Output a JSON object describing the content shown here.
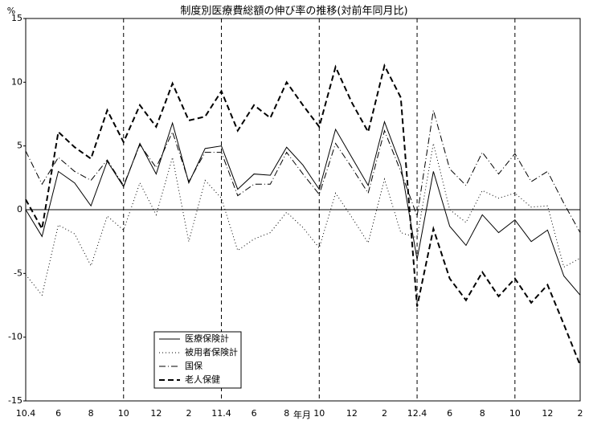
{
  "chart_data": {
    "type": "line",
    "title": "制度別医療費総額の伸び率の推移(対前年同月比)",
    "y_label": "%",
    "x_label": "年月",
    "categories": [
      "10.4",
      null,
      "6",
      null,
      "8",
      null,
      "10",
      null,
      "12",
      null,
      "2",
      null,
      "11.4",
      null,
      "6",
      null,
      "8",
      null,
      "10",
      null,
      "12",
      null,
      "2",
      null,
      "12.4",
      null,
      "6",
      null,
      "8",
      null,
      "10",
      null,
      "12",
      null,
      "2"
    ],
    "ylim": [
      -15,
      15
    ],
    "yticks": [
      15,
      10,
      5,
      0,
      -5,
      -10,
      -15
    ],
    "grid": false,
    "legend": "bottom-left",
    "series": [
      {
        "name": "医療保険計",
        "color": "#000000",
        "style": "solid",
        "values": [
          0,
          -2.1,
          3.0,
          2.1,
          0.3,
          3.8,
          1.8,
          5.2,
          2.8,
          6.8,
          2.1,
          4.8,
          5.0,
          1.6,
          2.8,
          2.7,
          4.9,
          3.5,
          1.6,
          6.3,
          4.1,
          1.9,
          6.9,
          3.5,
          -3.9,
          3.0,
          -1.3,
          -2.8,
          -0.4,
          -1.8,
          -0.8,
          -2.5,
          -1.6,
          -5.2,
          -6.7
        ]
      },
      {
        "name": "被用者保険計",
        "color": "#000000",
        "style": "dotted",
        "values": [
          -5.1,
          -6.7,
          -1.2,
          -1.9,
          -4.4,
          -0.5,
          -1.6,
          2.1,
          -0.4,
          4.1,
          -2.5,
          2.3,
          0.9,
          -3.2,
          -2.3,
          -1.8,
          -0.2,
          -1.4,
          -3.0,
          1.3,
          -0.6,
          -2.6,
          2.4,
          -1.8,
          -2.2,
          5.2,
          0.0,
          -1.0,
          1.5,
          0.9,
          1.3,
          0.2,
          0.3,
          -4.5,
          -3.8
        ]
      },
      {
        "name": "国保",
        "color": "#000000",
        "style": "dashdot",
        "values": [
          4.6,
          2.0,
          4.1,
          3.0,
          2.3,
          3.9,
          1.9,
          5.1,
          3.3,
          6.1,
          2.2,
          4.5,
          4.5,
          1.1,
          2.0,
          2.0,
          4.5,
          2.8,
          1.2,
          5.2,
          3.3,
          1.3,
          6.2,
          3.0,
          -0.5,
          7.8,
          3.2,
          1.9,
          4.5,
          2.8,
          4.4,
          2.2,
          3.0,
          0.5,
          -1.8
        ]
      },
      {
        "name": "老人保健",
        "color": "#000000",
        "style": "dashed",
        "values": [
          0.8,
          -1.5,
          6.1,
          4.9,
          4.0,
          7.8,
          5.3,
          8.2,
          6.5,
          9.9,
          7.0,
          7.3,
          9.3,
          6.2,
          8.2,
          7.2,
          10.0,
          8.2,
          6.5,
          11.2,
          8.4,
          6.1,
          11.3,
          8.8,
          -7.6,
          -1.5,
          -5.4,
          -7.1,
          -4.9,
          -6.8,
          -5.4,
          -7.3,
          -5.9,
          -9.0,
          -12.2
        ]
      }
    ]
  }
}
